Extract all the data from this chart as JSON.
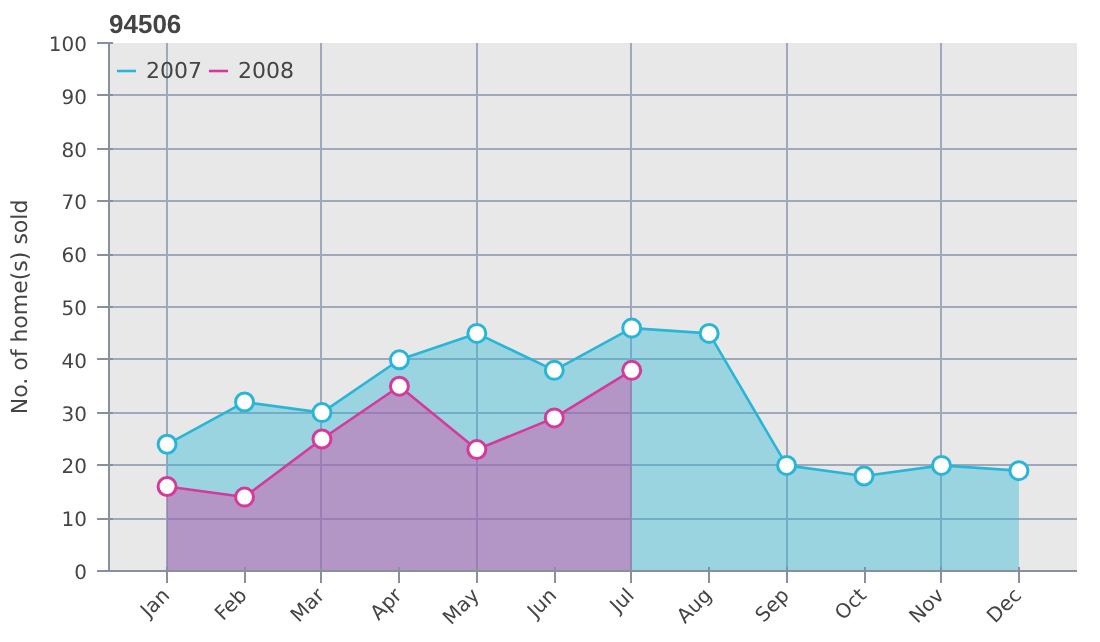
{
  "chart_data": {
    "type": "area",
    "title": "94506",
    "ylabel": "No. of home(s) sold",
    "categories": [
      "Jan",
      "Feb",
      "Mar",
      "Apr",
      "May",
      "Jun",
      "Jul",
      "Aug",
      "Sep",
      "Oct",
      "Nov",
      "Dec"
    ],
    "series": [
      {
        "name": "2007",
        "color": "#29b6d6",
        "values": [
          24,
          32,
          30,
          40,
          45,
          38,
          46,
          45,
          20,
          18,
          20,
          19
        ]
      },
      {
        "name": "2008",
        "color": "#d6399b",
        "values": [
          16,
          14,
          25,
          35,
          23,
          29,
          38,
          null,
          null,
          null,
          null,
          null
        ]
      }
    ],
    "ylim": [
      0,
      100
    ],
    "yticks": [
      0,
      10,
      20,
      30,
      40,
      50,
      60,
      70,
      80,
      90,
      100
    ],
    "grid": true,
    "legend": "top left",
    "marker": "circle"
  }
}
